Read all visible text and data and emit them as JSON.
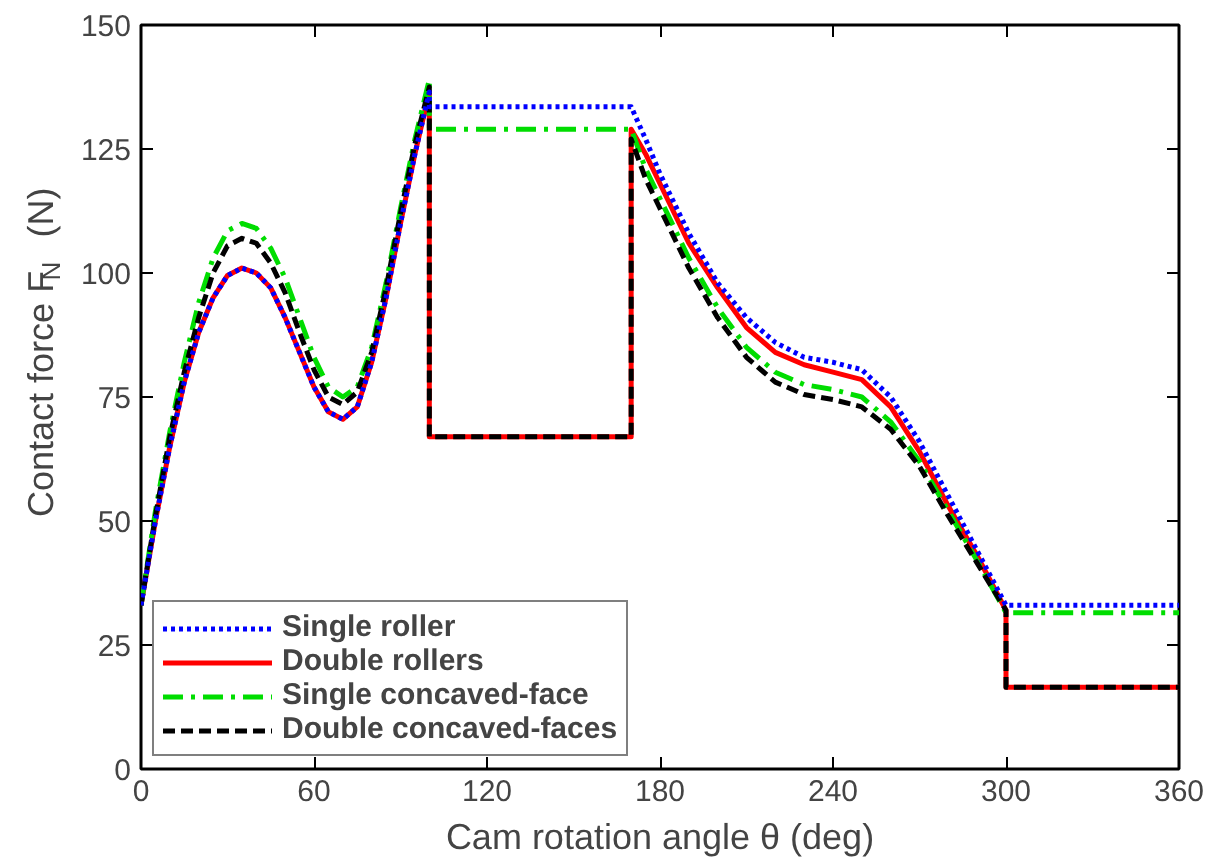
{
  "chart_data": {
    "type": "line",
    "xlabel": "Cam rotation angle θ (deg)",
    "ylabel": "Contact force F$_{N}$ (N)",
    "xlim": [
      0,
      360
    ],
    "ylim": [
      0,
      150
    ],
    "xticks": [
      0,
      60,
      120,
      180,
      240,
      300,
      360
    ],
    "yticks": [
      0,
      25,
      50,
      75,
      100,
      125,
      150
    ],
    "grid": false,
    "legend": "bottom left",
    "marker": "none",
    "series": [
      {
        "name": "Single roller",
        "color": "#0000ff",
        "line_style": "dotted",
        "x": [
          0,
          5,
          10,
          15,
          20,
          25,
          30,
          35,
          40,
          45,
          50,
          55,
          60,
          65,
          70,
          75,
          80,
          85,
          90,
          95,
          100,
          100,
          170,
          175,
          180,
          190,
          200,
          210,
          220,
          230,
          240,
          250,
          260,
          270,
          280,
          290,
          300,
          360
        ],
        "values": [
          33,
          50,
          65,
          78,
          88,
          95,
          99.5,
          101,
          100,
          97,
          91,
          84,
          77,
          72,
          70.5,
          73,
          82,
          95,
          110,
          124,
          136.5,
          133.5,
          133.5,
          127,
          120,
          108,
          98,
          91,
          86,
          83,
          82,
          80.5,
          75,
          66,
          55,
          44,
          33,
          33
        ]
      },
      {
        "name": "Double rollers",
        "color": "#ff0000",
        "line_style": "solid",
        "x": [
          0,
          5,
          10,
          15,
          20,
          25,
          30,
          35,
          40,
          45,
          50,
          55,
          60,
          65,
          70,
          75,
          80,
          85,
          90,
          95,
          100,
          100,
          170,
          170,
          175,
          180,
          190,
          200,
          210,
          220,
          230,
          240,
          250,
          260,
          270,
          280,
          290,
          300,
          300,
          360
        ],
        "values": [
          33,
          50,
          65,
          78,
          88,
          95,
          99.5,
          101,
          100,
          97,
          91,
          84,
          77,
          72,
          70.5,
          73,
          82,
          95,
          110,
          124,
          136.5,
          67,
          67,
          129,
          124,
          118,
          106,
          97,
          89,
          84,
          81.5,
          80,
          78.5,
          73,
          64,
          53,
          43,
          32,
          16.5,
          16.5
        ]
      },
      {
        "name": "Single concaved-face",
        "color": "#00dd00",
        "line_style": "dashdot",
        "x": [
          0,
          5,
          10,
          15,
          20,
          25,
          30,
          35,
          40,
          45,
          50,
          55,
          60,
          65,
          70,
          75,
          80,
          85,
          90,
          95,
          100,
          100,
          170,
          175,
          180,
          190,
          200,
          210,
          220,
          230,
          240,
          250,
          260,
          270,
          280,
          290,
          300,
          360
        ],
        "values": [
          33,
          52,
          68,
          82,
          94,
          103,
          108.5,
          110,
          109,
          105,
          99,
          91,
          83,
          77,
          75,
          77,
          85,
          98,
          113,
          127,
          139,
          129,
          129,
          121,
          115,
          103,
          93,
          85,
          80,
          77.5,
          76.5,
          75,
          70,
          62,
          52,
          42,
          31.5,
          31.5
        ]
      },
      {
        "name": "Double concaved-faces",
        "color": "#000000",
        "line_style": "dashed",
        "x": [
          0,
          5,
          10,
          15,
          20,
          25,
          30,
          35,
          40,
          45,
          50,
          55,
          60,
          65,
          70,
          75,
          80,
          85,
          90,
          95,
          100,
          100,
          170,
          170,
          175,
          180,
          190,
          200,
          210,
          220,
          230,
          240,
          250,
          260,
          270,
          280,
          290,
          300,
          300,
          360
        ],
        "values": [
          33,
          51,
          67,
          80,
          91,
          100,
          105.5,
          107,
          106,
          102,
          96,
          88,
          80.5,
          75,
          73.5,
          76,
          84,
          97,
          112,
          126,
          137.5,
          67,
          67,
          127,
          119,
          113,
          101,
          91,
          83,
          78,
          75.5,
          74.5,
          73,
          68.5,
          61,
          51,
          41.5,
          32,
          16.5,
          16.5
        ]
      }
    ]
  }
}
